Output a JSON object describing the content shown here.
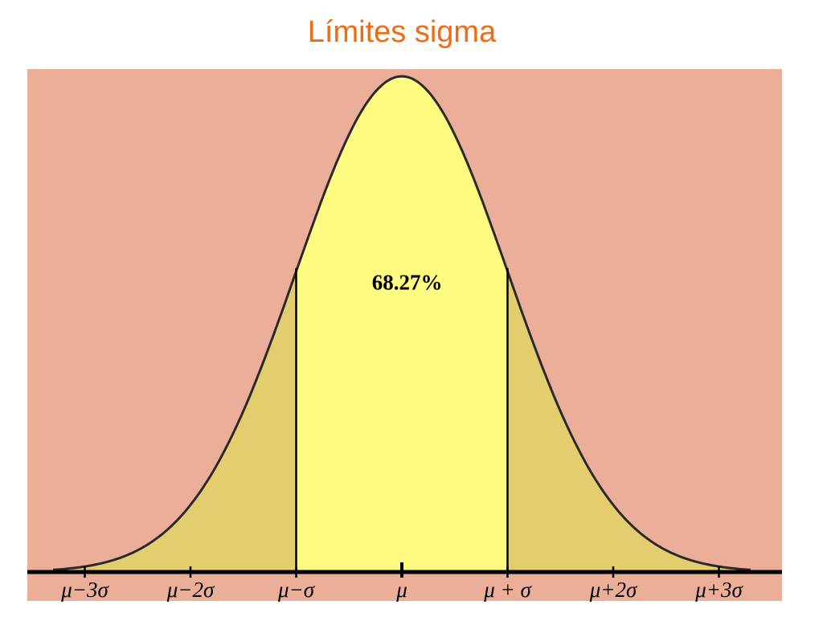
{
  "title": "Límites sigma",
  "colors": {
    "title": "#f26a12",
    "background": "#ebae99",
    "central_fill": "#fefb80",
    "tail_fill": "#e4cd6e",
    "curve": "#2a2a2a",
    "axis": "#000000"
  },
  "chart_data": {
    "type": "area",
    "distribution": "normal",
    "xlim": [
      -3.5,
      3.5
    ],
    "x_unit": "sigma",
    "ticks": [
      {
        "x": -3,
        "label": "μ−3σ"
      },
      {
        "x": -2,
        "label": "μ−2σ"
      },
      {
        "x": -1,
        "label": "μ−σ"
      },
      {
        "x": 0,
        "label": "μ"
      },
      {
        "x": 1,
        "label": "μ + σ"
      },
      {
        "x": 2,
        "label": "μ+2σ"
      },
      {
        "x": 3,
        "label": "μ+3σ"
      }
    ],
    "shaded_regions": [
      {
        "from": -1,
        "to": 1,
        "color_key": "central_fill"
      },
      {
        "from": -3.3,
        "to": -1,
        "color_key": "tail_fill"
      },
      {
        "from": 1,
        "to": 3.3,
        "color_key": "tail_fill"
      }
    ],
    "boundary_lines": [
      -1,
      1
    ],
    "annotations": [
      {
        "text": "68.27%",
        "x": 0.05,
        "y_fraction_of_peak": 0.57
      }
    ],
    "grid": false,
    "legend": "none"
  }
}
